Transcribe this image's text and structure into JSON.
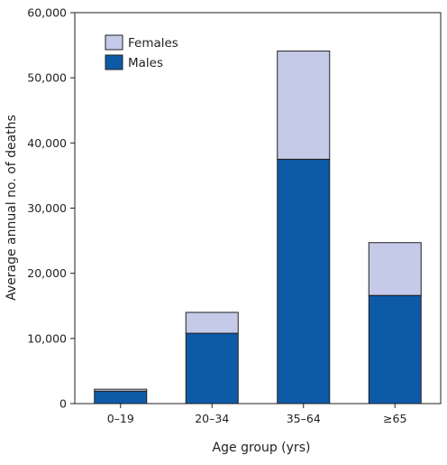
{
  "chart_data": {
    "type": "bar",
    "stacked": true,
    "categories": [
      "0–19",
      "20–34",
      "35–64",
      "≥65"
    ],
    "series": [
      {
        "name": "Males",
        "values": [
          1900,
          10800,
          37500,
          16600
        ],
        "color": "#0d5aa7"
      },
      {
        "name": "Females",
        "values": [
          300,
          3200,
          16600,
          8100
        ],
        "color": "#c5cae9"
      }
    ],
    "xlabel": "Age group (yrs)",
    "ylabel": "Average annual no. of deaths",
    "ylim": [
      0,
      60000
    ],
    "yticks": [
      0,
      10000,
      20000,
      30000,
      40000,
      50000,
      60000
    ],
    "ytick_labels": [
      "0",
      "10,000",
      "20,000",
      "30,000",
      "40,000",
      "50,000",
      "60,000"
    ],
    "grid": false,
    "legend": {
      "position": "top-left",
      "entries": [
        {
          "label": "Females",
          "color": "#c5cae9"
        },
        {
          "label": "Males",
          "color": "#0d5aa7"
        }
      ]
    }
  }
}
